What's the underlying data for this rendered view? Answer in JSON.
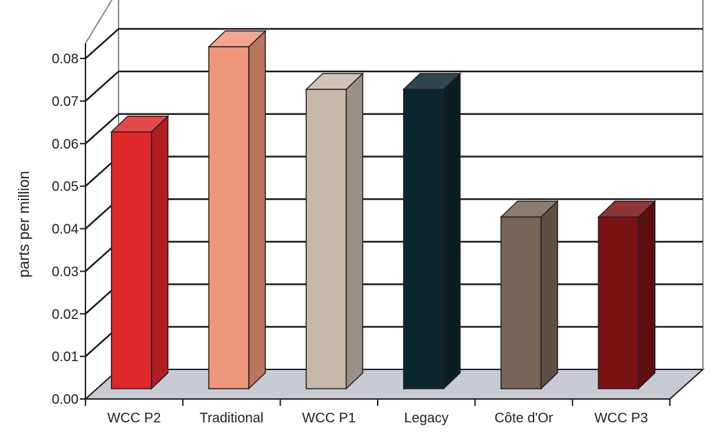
{
  "chart_data": {
    "type": "bar",
    "title": "",
    "xlabel": "",
    "ylabel": "parts per million",
    "ylim": [
      0,
      0.08
    ],
    "yticks": [
      "0.00",
      "0.01",
      "0.02",
      "0.03",
      "0.04",
      "0.05",
      "0.06",
      "0.07",
      "0.08"
    ],
    "grid": true,
    "legend": "none",
    "categories": [
      "WCC P2",
      "Traditional",
      "WCC P1",
      "Legacy",
      "Côte d'Or",
      "WCC P3"
    ],
    "values": [
      0.06,
      0.08,
      0.07,
      0.07,
      0.04,
      0.04
    ],
    "colors": [
      "#e0282b",
      "#ee9679",
      "#c7b8aa",
      "#0b262c",
      "#786557",
      "#7a1214"
    ],
    "floor_color": "#c8cbd2",
    "gridline_color": "#1a1a1a"
  }
}
